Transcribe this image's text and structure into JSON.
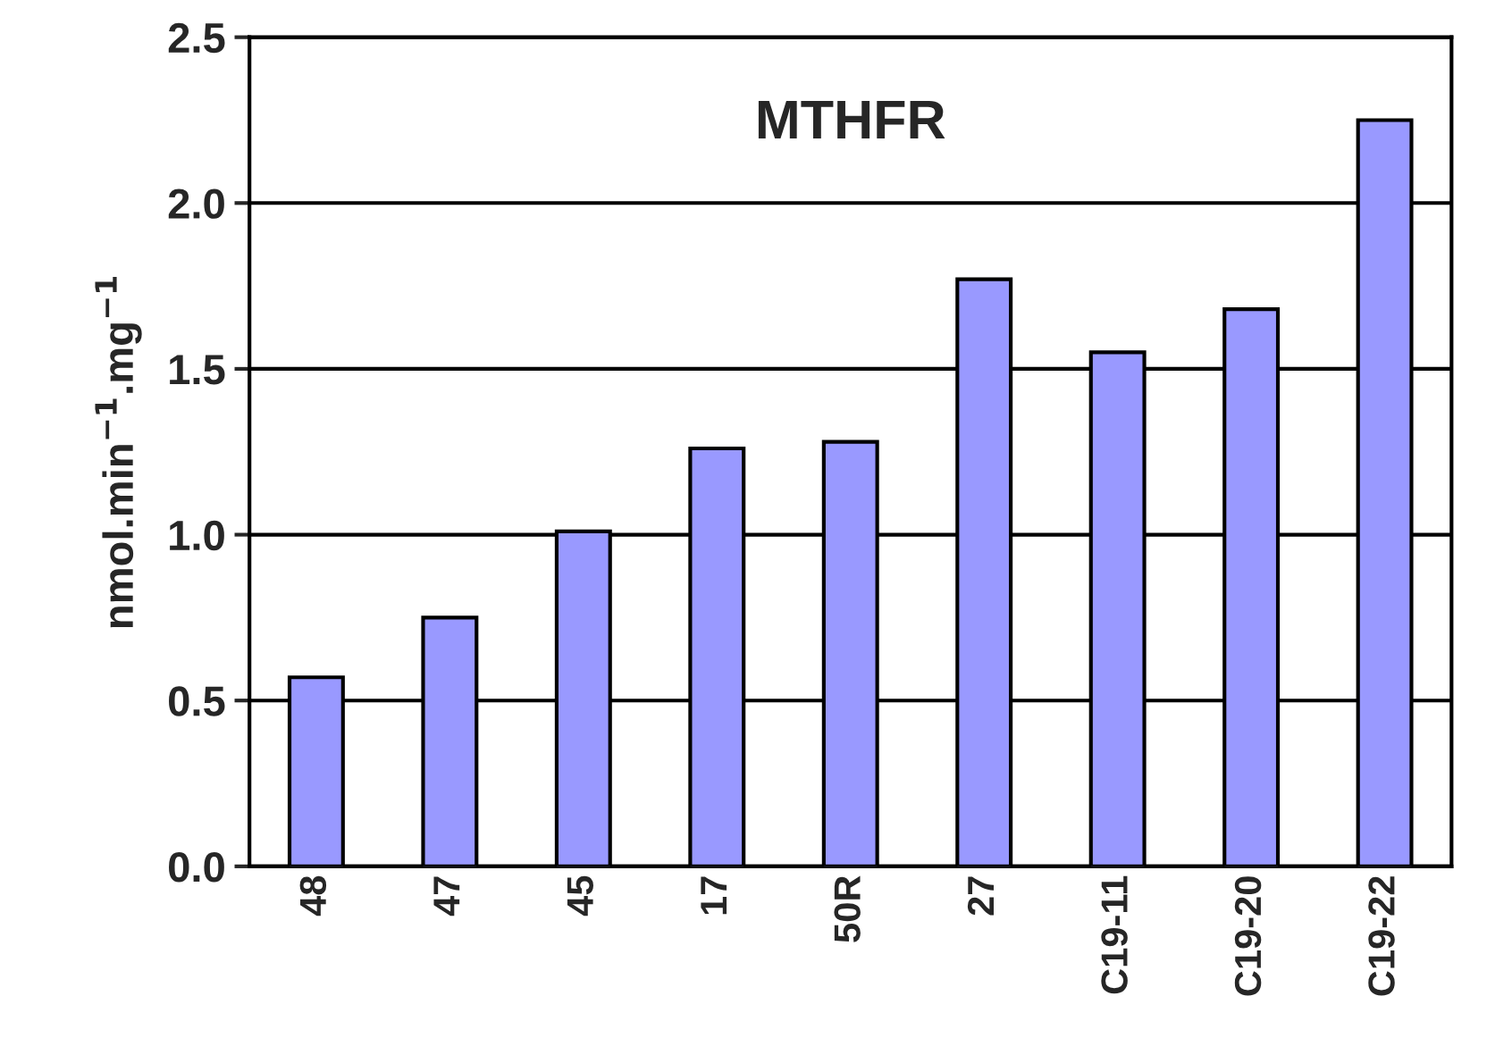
{
  "chart_data": {
    "type": "bar",
    "title": "MTHFR",
    "ylabel": "nmol.min$^{−1}$.mg$^{−1}$",
    "categories": [
      "48",
      "47",
      "45",
      "17",
      "50R",
      "27",
      "C19-11",
      "C19-20",
      "C19-22"
    ],
    "values": [
      0.57,
      0.75,
      1.01,
      1.26,
      1.28,
      1.77,
      1.55,
      1.68,
      2.25
    ],
    "color": "#9999ff",
    "ylim": [
      0,
      2.5
    ],
    "yticks": [
      {
        "value": 0,
        "label": "0.0"
      },
      0.5,
      {
        "value": 1,
        "label": "1.0"
      },
      1.5,
      {
        "value": 2,
        "label": "2.0"
      },
      2.5
    ],
    "grid": "y",
    "legend": false
  }
}
